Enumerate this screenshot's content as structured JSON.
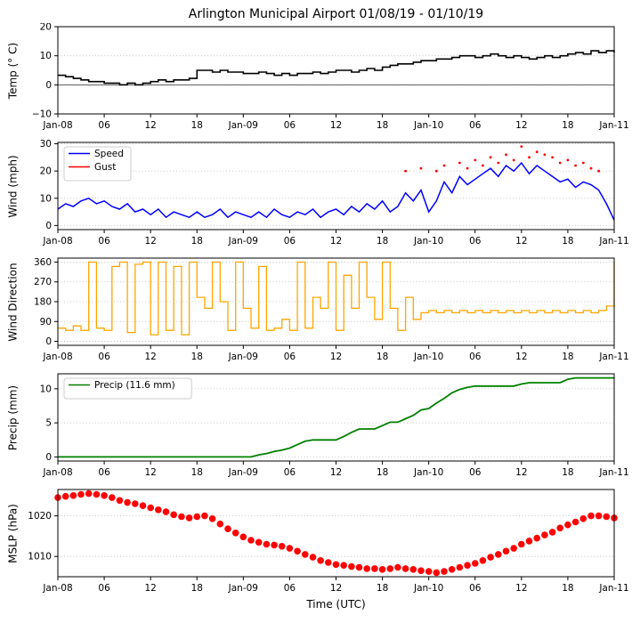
{
  "title": "Arlington Municipal Airport 01/08/19 - 01/10/19",
  "xlabel": "Time (UTC)",
  "x_axis": {
    "range_hours": [
      0,
      72
    ],
    "tick_hours": [
      0,
      6,
      12,
      18,
      24,
      30,
      36,
      42,
      48,
      54,
      60,
      66,
      72
    ],
    "tick_labels": [
      "Jan-08",
      "06",
      "12",
      "18",
      "Jan-09",
      "06",
      "12",
      "18",
      "Jan-10",
      "06",
      "12",
      "18",
      "Jan-11"
    ]
  },
  "chart_data": [
    {
      "type": "line",
      "ylabel": "Temp (° C)",
      "ylim": [
        -10,
        20
      ],
      "yticks": [
        -10,
        0,
        10,
        20
      ],
      "zero_line": true,
      "series": [
        {
          "name": "Temp",
          "color": "#000000",
          "style": "step",
          "width": 1.6,
          "values": [
            3.3,
            2.8,
            2.2,
            1.7,
            1.1,
            1.1,
            0.6,
            0.6,
            0,
            0.6,
            0,
            0.6,
            1.1,
            1.7,
            1.1,
            1.7,
            1.7,
            2.2,
            5,
            5,
            4.4,
            5,
            4.4,
            4.4,
            3.9,
            3.9,
            4.4,
            3.9,
            3.3,
            3.9,
            3.3,
            3.9,
            3.9,
            4.4,
            3.9,
            4.4,
            5,
            5,
            4.4,
            5,
            5.6,
            5,
            6.1,
            6.7,
            7.2,
            7.2,
            7.8,
            8.3,
            8.3,
            8.9,
            8.9,
            9.4,
            10,
            10,
            9.4,
            10,
            10.6,
            10,
            9.4,
            10,
            9.4,
            8.9,
            9.4,
            10,
            9.4,
            10,
            10.6,
            11.1,
            10.6,
            11.7,
            11.1,
            11.7,
            11.1
          ]
        }
      ]
    },
    {
      "type": "line",
      "ylabel": "Wind (mph)",
      "ylim": [
        -1.5,
        30.5
      ],
      "yticks": [
        0,
        10,
        20,
        30
      ],
      "legend": true,
      "series": [
        {
          "name": "Speed",
          "color": "#0000ff",
          "style": "line",
          "width": 1.5,
          "values": [
            6,
            8,
            7,
            9,
            10,
            8,
            9,
            7,
            6,
            8,
            5,
            6,
            4,
            6,
            3,
            5,
            4,
            3,
            5,
            3,
            4,
            6,
            3,
            5,
            4,
            3,
            5,
            3,
            6,
            4,
            3,
            5,
            4,
            6,
            3,
            5,
            6,
            4,
            7,
            5,
            8,
            6,
            9,
            5,
            7,
            12,
            9,
            13,
            5,
            9,
            16,
            12,
            18,
            15,
            17,
            19,
            21,
            18,
            22,
            20,
            23,
            19,
            22,
            20,
            18,
            16,
            17,
            14,
            16,
            15,
            13,
            8,
            2
          ]
        },
        {
          "name": "Gust",
          "color": "#ff0000",
          "style": "dots",
          "radius": 1.4,
          "x": [
            45,
            47,
            49,
            50,
            52,
            53,
            54,
            55,
            56,
            57,
            58,
            59,
            60,
            61,
            62,
            63,
            64,
            65,
            66,
            67,
            68,
            69,
            70
          ],
          "values": [
            20,
            21,
            20,
            22,
            23,
            21,
            24,
            22,
            25,
            23,
            26,
            24,
            29,
            25,
            27,
            26,
            25,
            23,
            24,
            22,
            23,
            21,
            20
          ]
        }
      ]
    },
    {
      "type": "line",
      "ylabel": "Wind Direction",
      "ylim": [
        -18,
        378
      ],
      "yticks": [
        0,
        90,
        180,
        270,
        360
      ],
      "series": [
        {
          "name": "Direction",
          "color": "#ffa500",
          "style": "step",
          "width": 1.3,
          "values": [
            60,
            50,
            70,
            50,
            360,
            60,
            50,
            340,
            360,
            40,
            350,
            360,
            30,
            360,
            50,
            340,
            30,
            360,
            200,
            150,
            360,
            180,
            50,
            360,
            150,
            60,
            340,
            50,
            60,
            100,
            50,
            360,
            60,
            200,
            150,
            360,
            50,
            300,
            150,
            360,
            200,
            100,
            360,
            150,
            50,
            200,
            100,
            130,
            140,
            130,
            140,
            130,
            140,
            130,
            140,
            130,
            140,
            130,
            140,
            130,
            140,
            130,
            140,
            130,
            140,
            130,
            140,
            130,
            140,
            130,
            140,
            160,
            360
          ]
        }
      ]
    },
    {
      "type": "line",
      "ylabel": "Precip (mm)",
      "ylim": [
        -0.6,
        12.2
      ],
      "yticks": [
        0,
        5,
        10
      ],
      "legend": true,
      "precip_total_mm": 11.6,
      "series": [
        {
          "name": "Precip (11.6 mm)",
          "color": "#008000",
          "style": "line",
          "width": 1.8,
          "values": [
            0,
            0,
            0,
            0,
            0,
            0,
            0,
            0,
            0,
            0,
            0,
            0,
            0,
            0,
            0,
            0,
            0,
            0,
            0,
            0,
            0,
            0,
            0,
            0,
            0,
            0,
            0.3,
            0.5,
            0.8,
            1.0,
            1.3,
            1.8,
            2.3,
            2.5,
            2.5,
            2.5,
            2.5,
            3.0,
            3.6,
            4.1,
            4.1,
            4.1,
            4.6,
            5.1,
            5.1,
            5.6,
            6.1,
            6.9,
            7.1,
            7.9,
            8.6,
            9.4,
            9.9,
            10.2,
            10.4,
            10.4,
            10.4,
            10.4,
            10.4,
            10.4,
            10.7,
            10.9,
            10.9,
            10.9,
            10.9,
            10.9,
            11.4,
            11.6,
            11.6,
            11.6,
            11.6,
            11.6,
            11.6
          ]
        }
      ]
    },
    {
      "type": "scatter",
      "ylabel": "MSLP (hPa)",
      "ylim": [
        1005,
        1026.5
      ],
      "yticks": [
        1010,
        1020
      ],
      "series": [
        {
          "name": "MSLP",
          "color": "#ff0000",
          "style": "dots",
          "radius": 3.8,
          "values": [
            1024.5,
            1024.8,
            1025,
            1025.3,
            1025.5,
            1025.3,
            1025,
            1024.5,
            1023.8,
            1023.3,
            1023,
            1022.5,
            1022,
            1021.5,
            1021,
            1020.3,
            1019.8,
            1019.5,
            1019.8,
            1020,
            1019.3,
            1018,
            1016.8,
            1015.8,
            1014.8,
            1014,
            1013.5,
            1013,
            1012.8,
            1012.5,
            1012,
            1011.3,
            1010.5,
            1009.8,
            1009,
            1008.5,
            1008,
            1007.8,
            1007.5,
            1007.3,
            1007,
            1007,
            1006.8,
            1007,
            1007.3,
            1007,
            1006.8,
            1006.5,
            1006.3,
            1006,
            1006.3,
            1006.8,
            1007.3,
            1007.8,
            1008.3,
            1009,
            1009.8,
            1010.5,
            1011.3,
            1012,
            1013,
            1013.8,
            1014.5,
            1015.3,
            1016,
            1017,
            1017.8,
            1018.5,
            1019.3,
            1020,
            1020,
            1019.8,
            1019.5
          ]
        }
      ]
    }
  ]
}
